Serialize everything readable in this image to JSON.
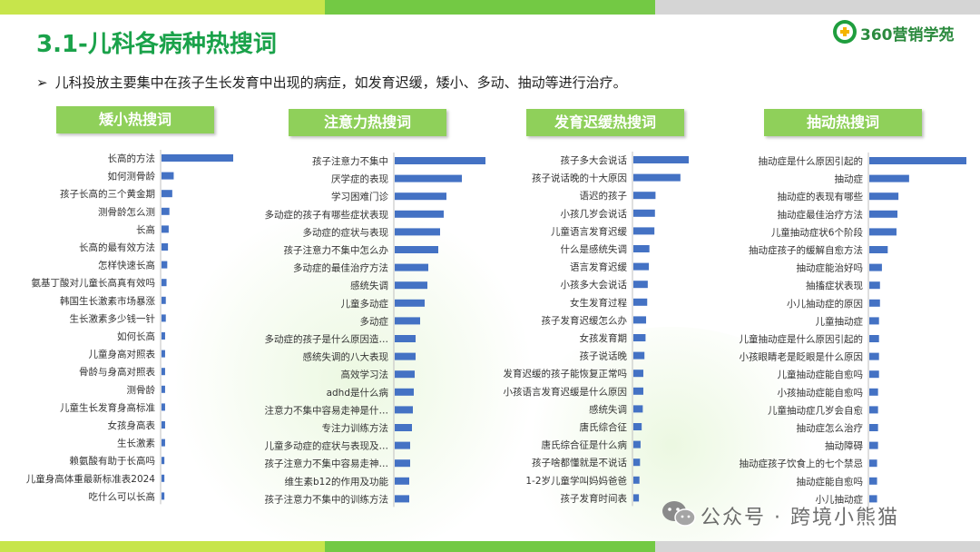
{
  "header": {
    "title_num": "3.1-",
    "title_text": "儿科各病种热搜词",
    "logo_text": "360营销学苑",
    "subtitle": "儿科投放主要集中在孩子生长发育中出现的病症，如发育迟缓，矮小、多动、抽动等进行治疗。"
  },
  "watermark": {
    "text": "公众号 · 跨境小熊猫"
  },
  "colors": {
    "bar": "#4472c4",
    "panel_title_bg": "#8fd05a",
    "title": "#1aa24a"
  },
  "chart_data": [
    {
      "type": "bar",
      "orientation": "horizontal",
      "title": "矮小热搜词",
      "categories": [
        "长高的方法",
        "如何测骨龄",
        "孩子长高的三个黄金期",
        "测骨龄怎么测",
        "长高",
        "长高的最有效方法",
        "怎样快速长高",
        "氨基丁酸对儿童长高真有效吗",
        "韩国生长激素市场暴涨",
        "生长激素多少钱一针",
        "如何长高",
        "儿童身高对照表",
        "骨龄与身高对照表",
        "测骨龄",
        "儿童生长发育身高标准",
        "女孩身高表",
        "生长激素",
        "赖氨酸有助于长高吗",
        "儿童身高体重最新标准表2024",
        "吃什么可以长高"
      ],
      "values": [
        100,
        17,
        15,
        11,
        10,
        9,
        8,
        7,
        6,
        6,
        5,
        5,
        5,
        5,
        5,
        5,
        5,
        4,
        4,
        4
      ]
    },
    {
      "type": "bar",
      "orientation": "horizontal",
      "title": "注意力热搜词",
      "categories": [
        "孩子注意力不集中",
        "厌学症的表现",
        "学习困难门诊",
        "多动症的孩子有哪些症状表现",
        "多动症的症状与表现",
        "孩子注意力不集中怎么办",
        "多动症的最佳治疗方法",
        "感统失调",
        "儿童多动症",
        "多动症",
        "多动症的孩子是什么原因造…",
        "感统失调的八大表现",
        "高效学习法",
        "adhd是什么病",
        "注意力不集中容易走神是什…",
        "专注力训练方法",
        "儿童多动症的症状与表现及…",
        "孩子注意力不集中容易走神…",
        "维生素b12的作用及功能",
        "孩子注意力不集中的训练方法"
      ],
      "values": [
        100,
        74,
        57,
        54,
        50,
        48,
        37,
        36,
        33,
        28,
        23,
        23,
        22,
        21,
        20,
        19,
        17,
        17,
        16,
        16
      ]
    },
    {
      "type": "bar",
      "orientation": "horizontal",
      "title": "发育迟缓热搜词",
      "categories": [
        "孩子多大会说话",
        "孩子说话晚的十大原因",
        "语迟的孩子",
        "小孩几岁会说话",
        "儿童语言发育迟缓",
        "什么是感统失调",
        "语言发育迟缓",
        "小孩多大会说话",
        "女生发育过程",
        "孩子发育迟缓怎么办",
        "女孩发育期",
        "孩子说话晚",
        "发育迟缓的孩子能恢复正常吗",
        "小孩语言发育迟缓是什么原因",
        "感统失调",
        "唐氏综合征",
        "唐氏综合征是什么病",
        "孩子啥都懂就是不说话",
        "1-2岁儿童学叫妈妈爸爸",
        "孩子发育时间表"
      ],
      "values": [
        100,
        85,
        40,
        39,
        38,
        29,
        28,
        26,
        25,
        23,
        22,
        20,
        18,
        18,
        17,
        15,
        13,
        12,
        11,
        10
      ]
    },
    {
      "type": "bar",
      "orientation": "horizontal",
      "title": "抽动热搜词",
      "categories": [
        "抽动症是什么原因引起的",
        "抽动症",
        "抽动症的表现有哪些",
        "抽动症最佳治疗方法",
        "儿童抽动症状6个阶段",
        "抽动症孩子的缓解自愈方法",
        "抽动症能治好吗",
        "抽搐症状表现",
        "小儿抽动症的原因",
        "儿童抽动症",
        "儿童抽动症是什么原因引起的",
        "小孩眼睛老是眨眼是什么原因",
        "儿童抽动症能自愈吗",
        "小孩抽动症能自愈吗",
        "儿童抽动症几岁会自愈",
        "抽动症怎么治疗",
        "抽动障碍",
        "抽动症孩子饮食上的七个禁忌",
        "抽动症能自愈吗",
        "小儿抽动症"
      ],
      "values": [
        100,
        41,
        30,
        29,
        28,
        19,
        13,
        11,
        11,
        10,
        10,
        10,
        10,
        9,
        9,
        9,
        9,
        8,
        8,
        8
      ]
    }
  ]
}
